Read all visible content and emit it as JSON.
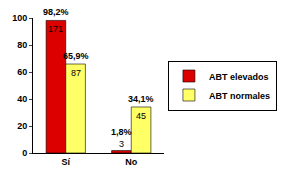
{
  "chart_data": {
    "type": "bar",
    "categories": [
      "Sí",
      "No"
    ],
    "series": [
      {
        "name": "ABT elevados",
        "color": "#dd0000",
        "values": [
          98.2,
          1.8
        ],
        "value_labels": [
          "98,2%",
          "1,8%"
        ],
        "counts": [
          171,
          3
        ]
      },
      {
        "name": "ABT normales",
        "color": "#ffff66",
        "values": [
          65.9,
          34.1
        ],
        "value_labels": [
          "65,9%",
          "34,1%"
        ],
        "counts": [
          87,
          45
        ]
      }
    ],
    "ylim": [
      0,
      100
    ],
    "yticks": [
      0,
      20,
      40,
      60,
      80,
      100
    ],
    "grid": false,
    "legend": "right",
    "data_labels": true
  }
}
